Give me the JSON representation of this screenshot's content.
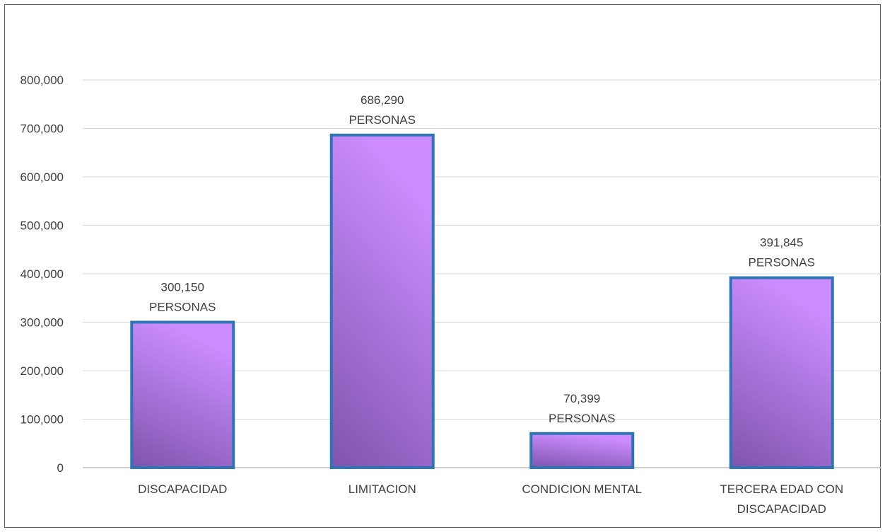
{
  "chart_data": {
    "type": "bar",
    "title": "",
    "xlabel": "",
    "ylabel": "",
    "categories": [
      [
        "DISCAPACIDAD"
      ],
      [
        "LIMITACION"
      ],
      [
        "CONDICION MENTAL"
      ],
      [
        "TERCERA EDAD CON",
        "DISCAPACIDAD"
      ]
    ],
    "values": [
      300150,
      686290,
      70399,
      391845
    ],
    "data_labels": [
      [
        "300,150",
        "PERSONAS"
      ],
      [
        "686,290",
        "PERSONAS"
      ],
      [
        "70,399",
        "PERSONAS"
      ],
      [
        "391,845",
        "PERSONAS"
      ]
    ],
    "y_ticks": [
      {
        "value": 0,
        "label": "0"
      },
      {
        "value": 100000,
        "label": "100,000"
      },
      {
        "value": 200000,
        "label": "200,000"
      },
      {
        "value": 300000,
        "label": "300,000"
      },
      {
        "value": 400000,
        "label": "400,000"
      },
      {
        "value": 500000,
        "label": "500,000"
      },
      {
        "value": 600000,
        "label": "600,000"
      },
      {
        "value": 700000,
        "label": "700,000"
      },
      {
        "value": 800000,
        "label": "800,000"
      }
    ],
    "ylim": [
      0,
      800000
    ],
    "grid": true,
    "legend": "none",
    "colors": {
      "bar_fill_top": "#cc8cff",
      "bar_fill_bottom": "#7f55ad",
      "bar_border": "#2e75b6",
      "gridline": "#d9d9d9",
      "axis_line": "#bfbfbf",
      "text": "#404040"
    }
  }
}
